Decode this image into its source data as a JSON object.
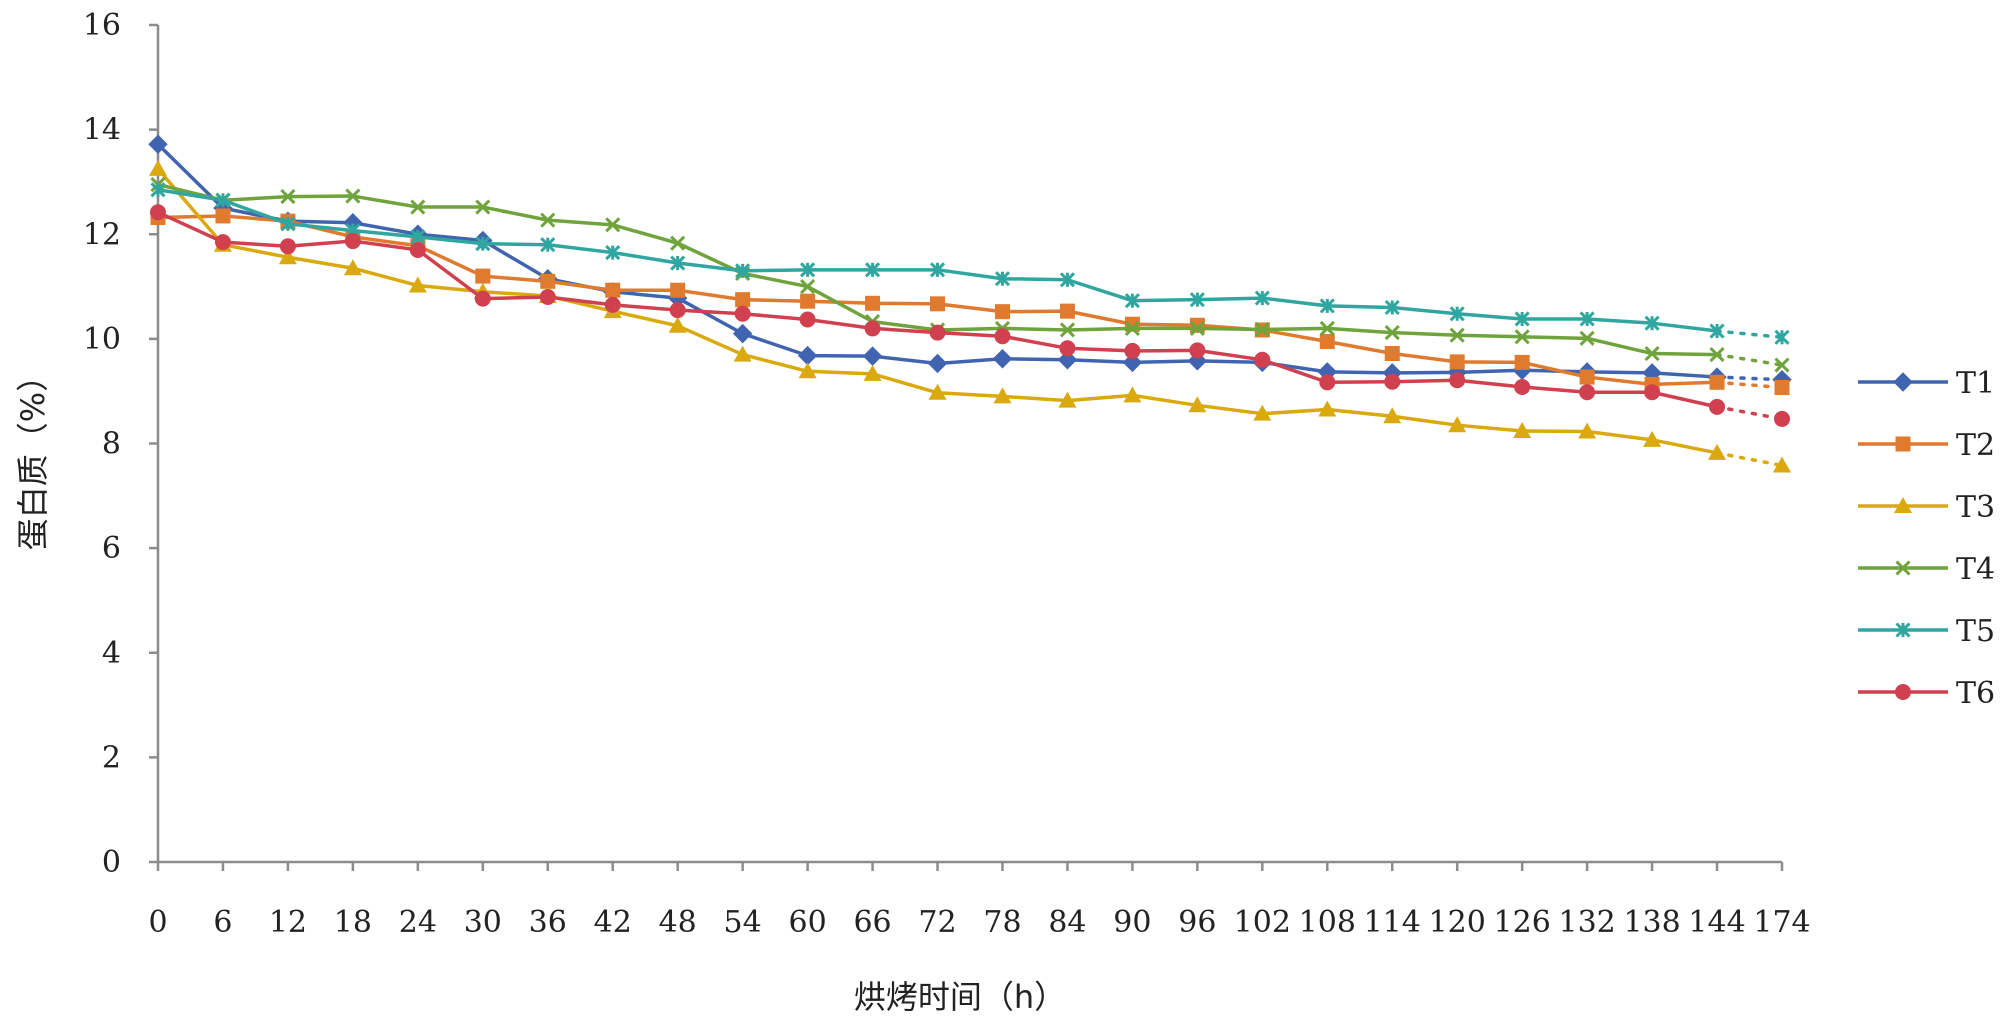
{
  "chart_data": {
    "type": "line",
    "title": "",
    "xlabel": "烘烤时间（h）",
    "ylabel": "蛋白质（%）",
    "ylim": [
      0,
      16
    ],
    "yticks": [
      0,
      2,
      4,
      6,
      8,
      10,
      12,
      14,
      16
    ],
    "categories": [
      "0",
      "6",
      "12",
      "18",
      "24",
      "30",
      "36",
      "42",
      "48",
      "54",
      "60",
      "66",
      "72",
      "78",
      "84",
      "90",
      "96",
      "102",
      "108",
      "114",
      "120",
      "126",
      "132",
      "138",
      "144",
      "174"
    ],
    "legend_position": "right",
    "last_segment_style": "dotted",
    "series": [
      {
        "name": "T1",
        "color": "#4064B0",
        "marker": "diamond",
        "values": [
          13.72,
          12.5,
          12.25,
          12.22,
          12.0,
          11.88,
          11.15,
          10.9,
          10.78,
          10.1,
          9.68,
          9.67,
          9.53,
          9.62,
          9.6,
          9.55,
          9.58,
          9.55,
          9.37,
          9.35,
          9.36,
          9.4,
          9.37,
          9.35,
          9.27,
          9.22
        ]
      },
      {
        "name": "T2",
        "color": "#E07A2E",
        "marker": "square",
        "values": [
          12.32,
          12.35,
          12.25,
          11.95,
          11.78,
          11.2,
          11.1,
          10.93,
          10.93,
          10.75,
          10.72,
          10.68,
          10.67,
          10.52,
          10.53,
          10.28,
          10.26,
          10.17,
          9.95,
          9.72,
          9.56,
          9.55,
          9.27,
          9.13,
          9.17,
          9.07
        ]
      },
      {
        "name": "T3",
        "color": "#D9A90F",
        "marker": "triangle",
        "values": [
          13.25,
          11.8,
          11.56,
          11.35,
          11.02,
          10.9,
          10.82,
          10.53,
          10.25,
          9.7,
          9.38,
          9.33,
          8.97,
          8.9,
          8.82,
          8.92,
          8.73,
          8.57,
          8.65,
          8.52,
          8.35,
          8.24,
          8.23,
          8.07,
          7.82,
          7.58
        ]
      },
      {
        "name": "T4",
        "color": "#6FA33C",
        "marker": "x",
        "values": [
          12.95,
          12.65,
          12.72,
          12.73,
          12.52,
          12.52,
          12.27,
          12.18,
          11.83,
          11.25,
          11.0,
          10.33,
          10.17,
          10.2,
          10.17,
          10.2,
          10.2,
          10.18,
          10.2,
          10.12,
          10.07,
          10.04,
          10.01,
          9.72,
          9.7,
          9.5
        ]
      },
      {
        "name": "T5",
        "color": "#2FA7A0",
        "marker": "star",
        "values": [
          12.85,
          12.65,
          12.2,
          12.07,
          11.95,
          11.82,
          11.8,
          11.65,
          11.45,
          11.3,
          11.32,
          11.32,
          11.32,
          11.15,
          11.13,
          10.73,
          10.75,
          10.78,
          10.63,
          10.6,
          10.48,
          10.38,
          10.38,
          10.3,
          10.15,
          10.03
        ]
      },
      {
        "name": "T6",
        "color": "#D0404E",
        "marker": "circle",
        "values": [
          12.42,
          11.85,
          11.77,
          11.87,
          11.7,
          10.77,
          10.8,
          10.65,
          10.55,
          10.48,
          10.37,
          10.2,
          10.12,
          10.05,
          9.82,
          9.77,
          9.78,
          9.6,
          9.17,
          9.18,
          9.21,
          9.08,
          8.98,
          8.98,
          8.7,
          8.47
        ]
      }
    ]
  }
}
